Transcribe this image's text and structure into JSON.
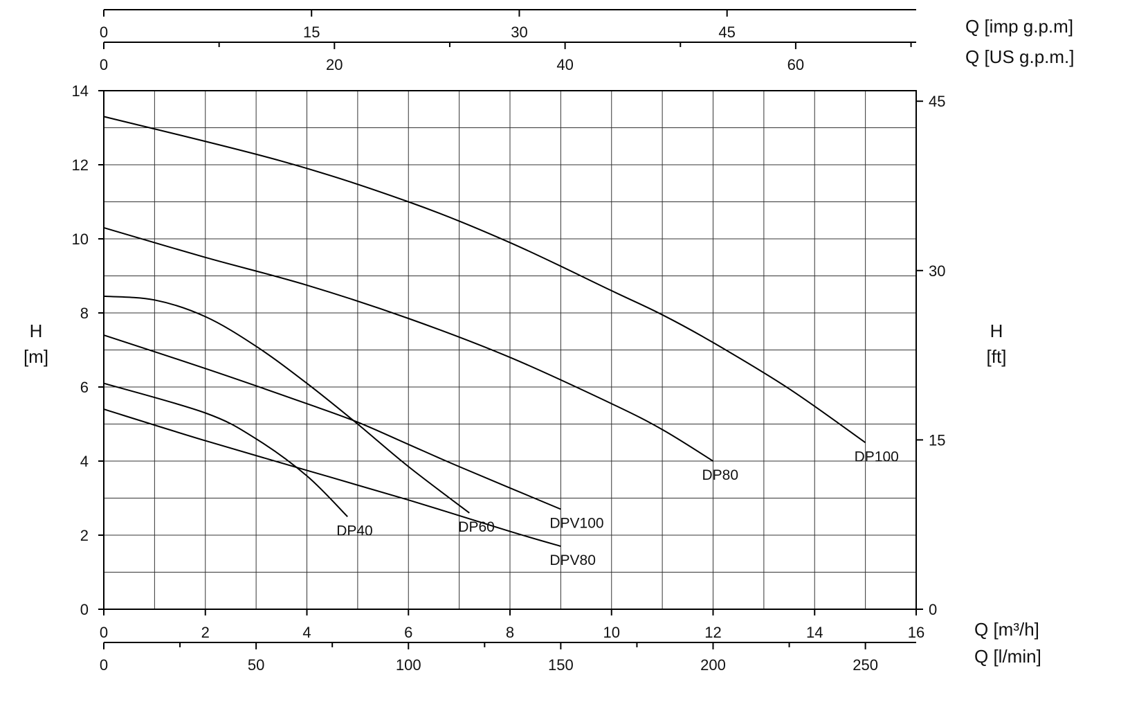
{
  "chart_data": {
    "type": "line",
    "title": "",
    "x": {
      "label": "Q [m³/h]",
      "range": [
        0,
        16
      ],
      "ticks": [
        0,
        2,
        4,
        6,
        8,
        10,
        12,
        14,
        16
      ],
      "minor_step": 1
    },
    "y": {
      "label": "H\n[m]",
      "label_lines": [
        "H",
        "[m]"
      ],
      "range": [
        0,
        14
      ],
      "ticks": [
        0,
        2,
        4,
        6,
        8,
        10,
        12,
        14
      ],
      "minor_step": 1
    },
    "y_right": {
      "label_lines": [
        "H",
        "[ft]"
      ],
      "factor_per_m": 3.28084,
      "ticks": [
        0,
        15,
        30,
        45
      ]
    },
    "secondary_x_axes": [
      {
        "position": "top-upper",
        "label": "Q [imp g.p.m]",
        "factor_per_m3h": 3.666,
        "ticks": [
          0,
          15,
          30,
          45
        ],
        "minor_ticks": []
      },
      {
        "position": "top-lower",
        "label": "Q [US g.p.m.]",
        "factor_per_m3h": 4.4029,
        "ticks": [
          0,
          20,
          40,
          60
        ],
        "minor_ticks": [
          10,
          30,
          50,
          70
        ]
      },
      {
        "position": "bottom-lower",
        "label": "Q [l/min]",
        "factor_per_m3h": 16.6667,
        "ticks": [
          0,
          50,
          100,
          150,
          200,
          250
        ],
        "minor_ticks": [
          25,
          75,
          125,
          175,
          225
        ]
      }
    ],
    "grid": true,
    "legend": "none",
    "series": [
      {
        "name": "DP100",
        "points": [
          [
            0,
            13.3
          ],
          [
            3.5,
            12.1
          ],
          [
            6,
            11.0
          ],
          [
            8,
            9.9
          ],
          [
            10,
            8.6
          ],
          [
            11,
            7.95
          ],
          [
            12,
            7.2
          ],
          [
            13.5,
            5.95
          ],
          [
            15,
            4.5
          ]
        ]
      },
      {
        "name": "DP80",
        "points": [
          [
            0,
            10.3
          ],
          [
            2,
            9.5
          ],
          [
            4,
            8.75
          ],
          [
            6,
            7.85
          ],
          [
            8,
            6.8
          ],
          [
            10,
            5.55
          ],
          [
            11,
            4.85
          ],
          [
            12,
            4.0
          ]
        ]
      },
      {
        "name": "DP60",
        "points": [
          [
            0,
            8.45
          ],
          [
            1,
            8.35
          ],
          [
            2,
            7.9
          ],
          [
            3,
            7.1
          ],
          [
            4,
            6.1
          ],
          [
            5,
            5.0
          ],
          [
            6,
            3.85
          ],
          [
            7.2,
            2.6
          ]
        ]
      },
      {
        "name": "DPV100",
        "points": [
          [
            0,
            7.4
          ],
          [
            2,
            6.5
          ],
          [
            4,
            5.55
          ],
          [
            5,
            5.05
          ],
          [
            6,
            4.45
          ],
          [
            7,
            3.85
          ],
          [
            9,
            2.7
          ]
        ]
      },
      {
        "name": "DP40",
        "points": [
          [
            0,
            6.1
          ],
          [
            2,
            5.3
          ],
          [
            3,
            4.6
          ],
          [
            4,
            3.6
          ],
          [
            4.8,
            2.5
          ]
        ]
      },
      {
        "name": "DPV80",
        "points": [
          [
            0,
            5.4
          ],
          [
            2,
            4.55
          ],
          [
            4,
            3.75
          ],
          [
            6,
            2.95
          ],
          [
            8,
            2.1
          ],
          [
            9,
            1.7
          ]
        ]
      }
    ]
  }
}
